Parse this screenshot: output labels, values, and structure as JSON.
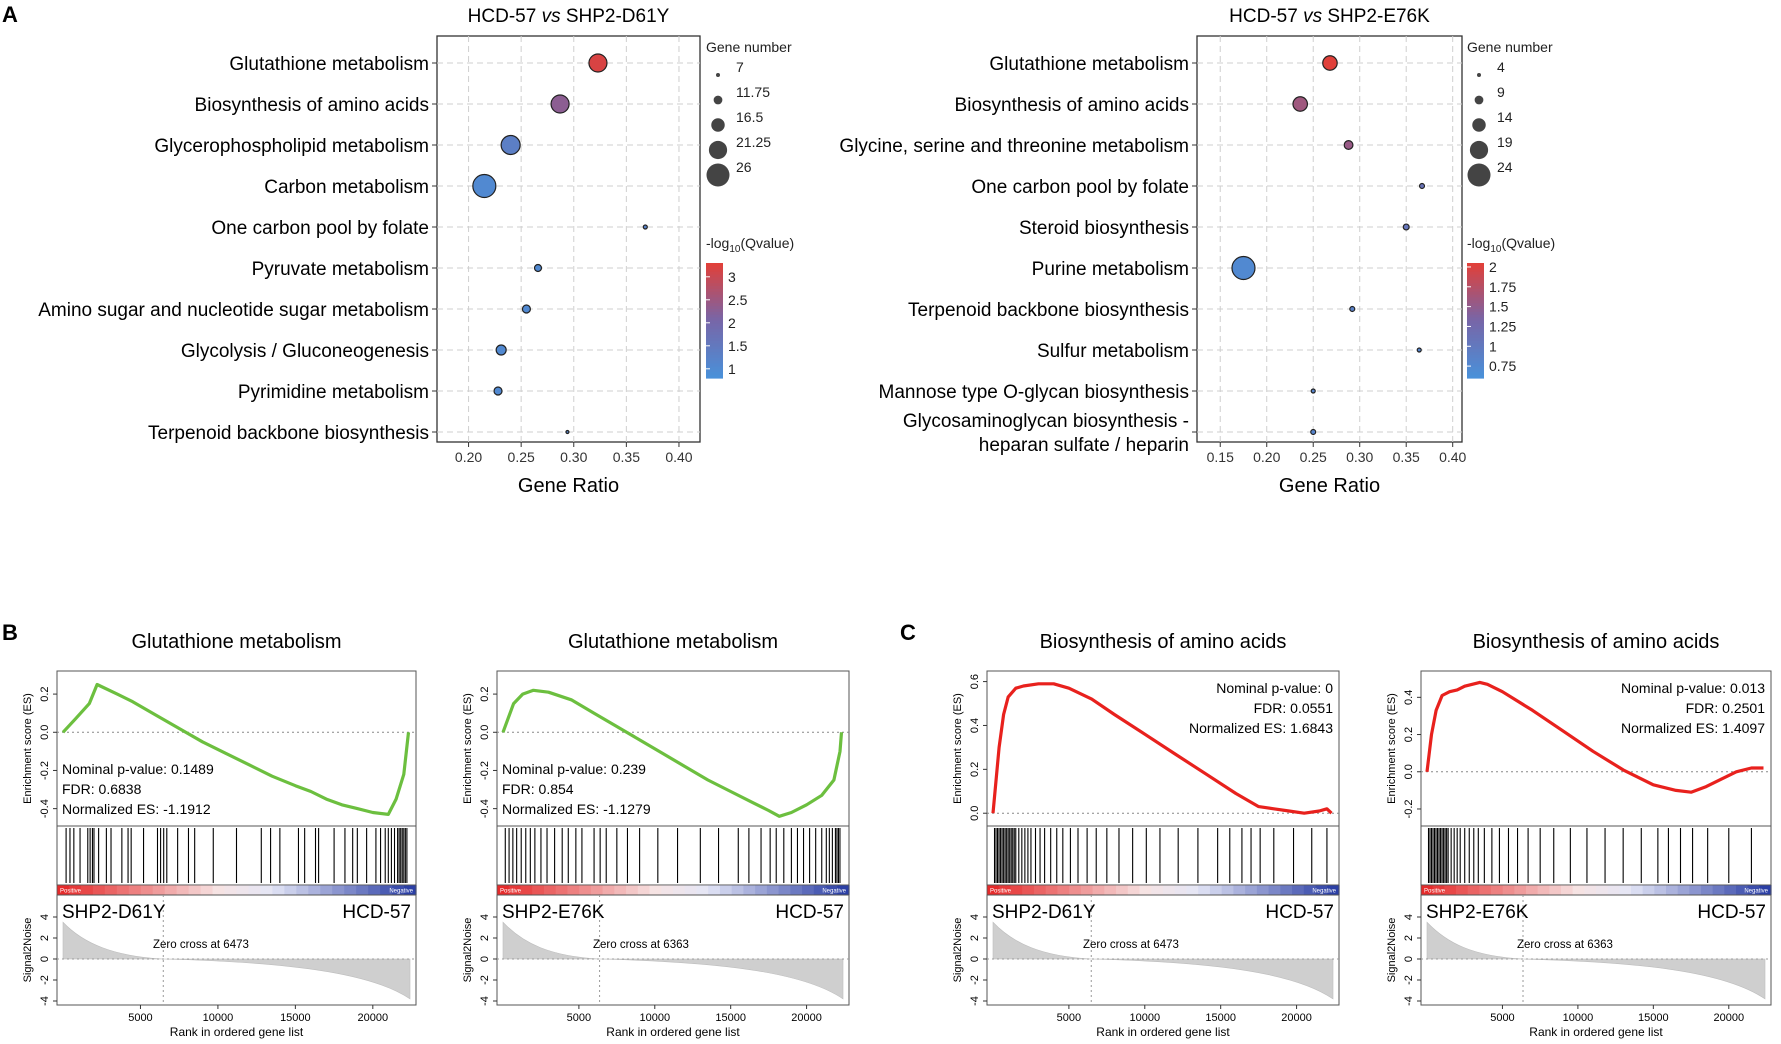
{
  "chart_data": [
    {
      "panel": "A",
      "type": "scatter",
      "title_left": "HCD-57",
      "title_vs": "vs",
      "title_right": "SHP2-D61Y",
      "xlabel": "Gene Ratio",
      "xticks": [
        "0.20",
        "0.25",
        "0.30",
        "0.35",
        "0.40"
      ],
      "xlim": [
        0.17,
        0.42
      ],
      "size_legend": {
        "title": "Gene number",
        "labels": [
          "7",
          "11.75",
          "16.5",
          "21.25",
          "26"
        ],
        "values": [
          7,
          11.75,
          16.5,
          21.25,
          26
        ]
      },
      "color_legend": {
        "title_prefix": "-log",
        "title_sub": "10",
        "title_suffix": "(Qvalue)",
        "labels": [
          "3",
          "2.5",
          "2",
          "1.5",
          "1"
        ],
        "range": [
          0.8,
          3.3
        ]
      },
      "pathways": [
        {
          "label": "Glutathione metabolism",
          "ratio": 0.323,
          "count": 21,
          "q": 3.2
        },
        {
          "label": "Biosynthesis of amino acids",
          "ratio": 0.287,
          "count": 21,
          "q": 2.3
        },
        {
          "label": "Glycerophospholipid metabolism",
          "ratio": 0.24,
          "count": 22,
          "q": 1.3
        },
        {
          "label": "Carbon metabolism",
          "ratio": 0.215,
          "count": 26,
          "q": 1.0
        },
        {
          "label": "One carbon pool by folate",
          "ratio": 0.368,
          "count": 7,
          "q": 1.2
        },
        {
          "label": "Pyruvate metabolism",
          "ratio": 0.266,
          "count": 10,
          "q": 1.0
        },
        {
          "label": "Amino sugar and nucleotide sugar metabolism",
          "ratio": 0.255,
          "count": 11,
          "q": 1.0
        },
        {
          "label": "Glycolysis / Gluconeogenesis",
          "ratio": 0.231,
          "count": 13,
          "q": 1.0
        },
        {
          "label": "Pyrimidine metabolism",
          "ratio": 0.228,
          "count": 11,
          "q": 1.0
        },
        {
          "label": "Terpenoid backbone biosynthesis",
          "ratio": 0.294,
          "count": 6,
          "q": 1.1
        }
      ]
    },
    {
      "panel": "A2",
      "type": "scatter",
      "title_left": "HCD-57",
      "title_vs": "vs",
      "title_right": "SHP2-E76K",
      "xlabel": "Gene Ratio",
      "xticks": [
        "0.15",
        "0.20",
        "0.25",
        "0.30",
        "0.35",
        "0.40"
      ],
      "xlim": [
        0.125,
        0.41
      ],
      "size_legend": {
        "title": "Gene number",
        "labels": [
          "4",
          "9",
          "14",
          "19",
          "24"
        ],
        "values": [
          4,
          9,
          14,
          19,
          24
        ]
      },
      "color_legend": {
        "title_prefix": "-log",
        "title_sub": "10",
        "title_suffix": "(Qvalue)",
        "labels": [
          "2",
          "1.75",
          "1.5",
          "1.25",
          "1",
          "0.75"
        ],
        "range": [
          0.6,
          2.05
        ]
      },
      "pathways": [
        {
          "label": "Glutathione metabolism",
          "ratio": 0.268,
          "count": 15,
          "q": 2.05
        },
        {
          "label": "Biosynthesis of amino acids",
          "ratio": 0.236,
          "count": 15,
          "q": 1.6
        },
        {
          "label": "Glycine, serine and threonine metabolism",
          "ratio": 0.288,
          "count": 9,
          "q": 1.55
        },
        {
          "label": "One carbon pool by folate",
          "ratio": 0.367,
          "count": 5,
          "q": 1.1
        },
        {
          "label": "Steroid biosynthesis",
          "ratio": 0.35,
          "count": 6,
          "q": 1.05
        },
        {
          "label": "Purine metabolism",
          "ratio": 0.175,
          "count": 24,
          "q": 0.72
        },
        {
          "label": "Terpenoid backbone biosynthesis",
          "ratio": 0.292,
          "count": 5,
          "q": 0.85
        },
        {
          "label": "Sulfur metabolism",
          "ratio": 0.364,
          "count": 4,
          "q": 0.8
        },
        {
          "label": "Mannose type O-glycan biosynthesis",
          "ratio": 0.25,
          "count": 4,
          "q": 0.8
        },
        {
          "label": "Glycosaminoglycan biosynthesis -|heparan sulfate / heparin",
          "ratio": 0.25,
          "count": 5,
          "q": 0.8
        }
      ]
    },
    {
      "panel": "B1",
      "type": "line",
      "color": "#6cbf3f",
      "title": "Glutathione metabolism",
      "stat_lines": [
        "Nominal p-value: 0.1489",
        "FDR: 0.6838",
        "Normalized ES: -1.1912"
      ],
      "ylabel_es": "Enrichment score (ES)",
      "yticks_es": [
        "0.2",
        "0.0",
        "-0.2",
        "-0.4"
      ],
      "ylim_es": [
        -0.47,
        0.3
      ],
      "es_curve": [
        [
          0,
          0.0
        ],
        [
          800,
          0.07
        ],
        [
          1700,
          0.15
        ],
        [
          2200,
          0.25
        ],
        [
          3500,
          0.2
        ],
        [
          4500,
          0.16
        ],
        [
          6000,
          0.09
        ],
        [
          7500,
          0.02
        ],
        [
          9000,
          -0.05
        ],
        [
          10500,
          -0.11
        ],
        [
          12000,
          -0.17
        ],
        [
          13500,
          -0.23
        ],
        [
          15000,
          -0.28
        ],
        [
          16000,
          -0.31
        ],
        [
          17000,
          -0.35
        ],
        [
          18000,
          -0.38
        ],
        [
          19000,
          -0.4
        ],
        [
          20000,
          -0.42
        ],
        [
          21000,
          -0.43
        ],
        [
          21500,
          -0.35
        ],
        [
          22000,
          -0.22
        ],
        [
          22300,
          0.0
        ]
      ],
      "hits": [
        200,
        450,
        700,
        1100,
        1600,
        1750,
        1900,
        2000,
        2300,
        2800,
        3100,
        3800,
        4200,
        4400,
        5200,
        6100,
        6300,
        6500,
        6700,
        7400,
        8100,
        8500,
        9700,
        11200,
        12800,
        13400,
        14000,
        15200,
        15600,
        16300,
        16500,
        17500,
        18200,
        18700,
        19000,
        19600,
        20200,
        20500,
        20800,
        21000,
        21200,
        21400,
        21600,
        21700,
        21800,
        21900,
        22000,
        22100,
        22200
      ],
      "bar_left_label": "Positive",
      "bar_right_label": "Negative",
      "left_group": "SHP2-D61Y",
      "right_group": "HCD-57",
      "zero_cross": "Zero cross at 6473",
      "zero_cross_rank": 6473,
      "ylabel_sn": "Signal2Noise",
      "yticks_sn": [
        "4",
        "2",
        "0",
        "-2",
        "-4"
      ],
      "xlabel": "Rank in ordered gene list",
      "xticks": [
        "5000",
        "10000",
        "15000",
        "20000"
      ],
      "xmax": 22400
    },
    {
      "panel": "B2",
      "type": "line",
      "color": "#6cbf3f",
      "title": "Glutathione metabolism",
      "stat_lines": [
        "Nominal p-value: 0.239",
        "FDR: 0.854",
        "Normalized ES: -1.1279"
      ],
      "ylabel_es": "Enrichment score (ES)",
      "yticks_es": [
        "0.2",
        "0.0",
        "-0.2",
        "-0.4"
      ],
      "ylim_es": [
        -0.47,
        0.3
      ],
      "es_curve": [
        [
          0,
          0.0
        ],
        [
          700,
          0.15
        ],
        [
          1300,
          0.2
        ],
        [
          2000,
          0.22
        ],
        [
          3000,
          0.21
        ],
        [
          4500,
          0.17
        ],
        [
          6000,
          0.1
        ],
        [
          7500,
          0.03
        ],
        [
          9000,
          -0.04
        ],
        [
          10500,
          -0.11
        ],
        [
          12000,
          -0.18
        ],
        [
          13500,
          -0.25
        ],
        [
          15000,
          -0.31
        ],
        [
          16500,
          -0.37
        ],
        [
          17500,
          -0.41
        ],
        [
          18200,
          -0.44
        ],
        [
          19000,
          -0.42
        ],
        [
          20000,
          -0.38
        ],
        [
          21000,
          -0.33
        ],
        [
          21800,
          -0.25
        ],
        [
          22200,
          -0.1
        ],
        [
          22300,
          0.0
        ]
      ],
      "hits": [
        150,
        400,
        650,
        900,
        1200,
        1500,
        1800,
        2100,
        2500,
        2900,
        3400,
        3900,
        4300,
        4800,
        5200,
        6000,
        6400,
        6800,
        7500,
        8200,
        9000,
        10200,
        11500,
        13000,
        14200,
        15500,
        16200,
        17000,
        17600,
        18000,
        18500,
        19000,
        19400,
        19800,
        20200,
        20600,
        21000,
        21300,
        21500,
        21700,
        21900,
        22000,
        22100,
        22200
      ],
      "bar_left_label": "Positive",
      "bar_right_label": "Negative",
      "left_group": "SHP2-E76K",
      "right_group": "HCD-57",
      "zero_cross": "Zero cross at 6363",
      "zero_cross_rank": 6363,
      "ylabel_sn": "Signal2Noise",
      "yticks_sn": [
        "4",
        "2",
        "0",
        "-2",
        "-4"
      ],
      "xlabel": "Rank in ordered gene list",
      "xticks": [
        "5000",
        "10000",
        "15000",
        "20000"
      ],
      "xmax": 22400
    },
    {
      "panel": "C1",
      "type": "line",
      "color": "#e8211d",
      "title": "Biosynthesis of amino acids",
      "stat_lines": [
        "Nominal p-value: 0",
        "FDR: 0.0551",
        "Normalized ES: 1.6843"
      ],
      "ylabel_es": "Enrichment score (ES)",
      "yticks_es": [
        "0.6",
        "0.4",
        "0.2",
        "0.0"
      ],
      "ylim_es": [
        -0.04,
        0.63
      ],
      "es_curve": [
        [
          0,
          0.0
        ],
        [
          400,
          0.3
        ],
        [
          700,
          0.45
        ],
        [
          1000,
          0.53
        ],
        [
          1500,
          0.57
        ],
        [
          2000,
          0.58
        ],
        [
          3000,
          0.59
        ],
        [
          4000,
          0.59
        ],
        [
          5000,
          0.57
        ],
        [
          6500,
          0.52
        ],
        [
          8000,
          0.45
        ],
        [
          10000,
          0.36
        ],
        [
          12000,
          0.27
        ],
        [
          14000,
          0.18
        ],
        [
          16000,
          0.09
        ],
        [
          17500,
          0.03
        ],
        [
          18500,
          0.02
        ],
        [
          19500,
          0.01
        ],
        [
          20500,
          0.0
        ],
        [
          21500,
          0.01
        ],
        [
          22000,
          0.02
        ],
        [
          22300,
          0.0
        ]
      ],
      "hits": [
        100,
        200,
        300,
        400,
        500,
        600,
        700,
        800,
        900,
        1000,
        1100,
        1200,
        1300,
        1400,
        1500,
        1700,
        1900,
        2100,
        2300,
        2500,
        2800,
        3100,
        3400,
        3800,
        4200,
        4600,
        5100,
        5600,
        6200,
        6800,
        7500,
        8300,
        9200,
        10100,
        11000,
        12200,
        13500,
        14800,
        15600,
        16400,
        17000,
        17600,
        18500,
        19800,
        21000,
        22000
      ],
      "bar_left_label": "Positive",
      "bar_right_label": "Negative",
      "left_group": "SHP2-D61Y",
      "right_group": "HCD-57",
      "zero_cross": "Zero cross at 6473",
      "zero_cross_rank": 6473,
      "ylabel_sn": "Signal2Noise",
      "yticks_sn": [
        "4",
        "2",
        "0",
        "-2",
        "-4"
      ],
      "xlabel": "Rank in ordered gene list",
      "xticks": [
        "5000",
        "10000",
        "15000",
        "20000"
      ],
      "xmax": 22400
    },
    {
      "panel": "C2",
      "type": "line",
      "color": "#e8211d",
      "title": "Biosynthesis of amino acids",
      "stat_lines": [
        "Nominal p-value: 0.013",
        "FDR: 0.2501",
        "Normalized ES: 1.4097"
      ],
      "ylabel_es": "Enrichment score (ES)",
      "yticks_es": [
        "0.4",
        "0.2",
        "0.0",
        "-0.2"
      ],
      "ylim_es": [
        -0.27,
        0.52
      ],
      "es_curve": [
        [
          0,
          0.0
        ],
        [
          300,
          0.2
        ],
        [
          600,
          0.33
        ],
        [
          1000,
          0.41
        ],
        [
          1500,
          0.43
        ],
        [
          2000,
          0.44
        ],
        [
          2500,
          0.46
        ],
        [
          3000,
          0.47
        ],
        [
          3500,
          0.48
        ],
        [
          4000,
          0.47
        ],
        [
          5000,
          0.43
        ],
        [
          7000,
          0.33
        ],
        [
          9000,
          0.22
        ],
        [
          11000,
          0.11
        ],
        [
          13000,
          0.01
        ],
        [
          15000,
          -0.07
        ],
        [
          16500,
          -0.1
        ],
        [
          17500,
          -0.11
        ],
        [
          18500,
          -0.08
        ],
        [
          19500,
          -0.04
        ],
        [
          20500,
          0.0
        ],
        [
          21500,
          0.02
        ],
        [
          22300,
          0.02
        ]
      ],
      "hits": [
        100,
        200,
        300,
        400,
        500,
        600,
        700,
        800,
        900,
        1000,
        1100,
        1200,
        1300,
        1400,
        1600,
        1800,
        2000,
        2200,
        2500,
        2800,
        3100,
        3400,
        3800,
        4300,
        4800,
        5400,
        6000,
        6700,
        7500,
        8400,
        9500,
        10600,
        11800,
        13000,
        14200,
        15300,
        16000,
        16800,
        17600,
        18600,
        20000,
        21500
      ],
      "bar_left_label": "Positive",
      "bar_right_label": "Negative",
      "left_group": "SHP2-E76K",
      "right_group": "HCD-57",
      "zero_cross": "Zero cross at 6363",
      "zero_cross_rank": 6363,
      "ylabel_sn": "Signal2Noise",
      "yticks_sn": [
        "4",
        "2",
        "0",
        "-2",
        "-4"
      ],
      "xlabel": "Rank in ordered gene list",
      "xticks": [
        "5000",
        "10000",
        "15000",
        "20000"
      ],
      "xmax": 22400
    }
  ],
  "panel_letters": {
    "A": "A",
    "B": "B",
    "C": "C"
  }
}
